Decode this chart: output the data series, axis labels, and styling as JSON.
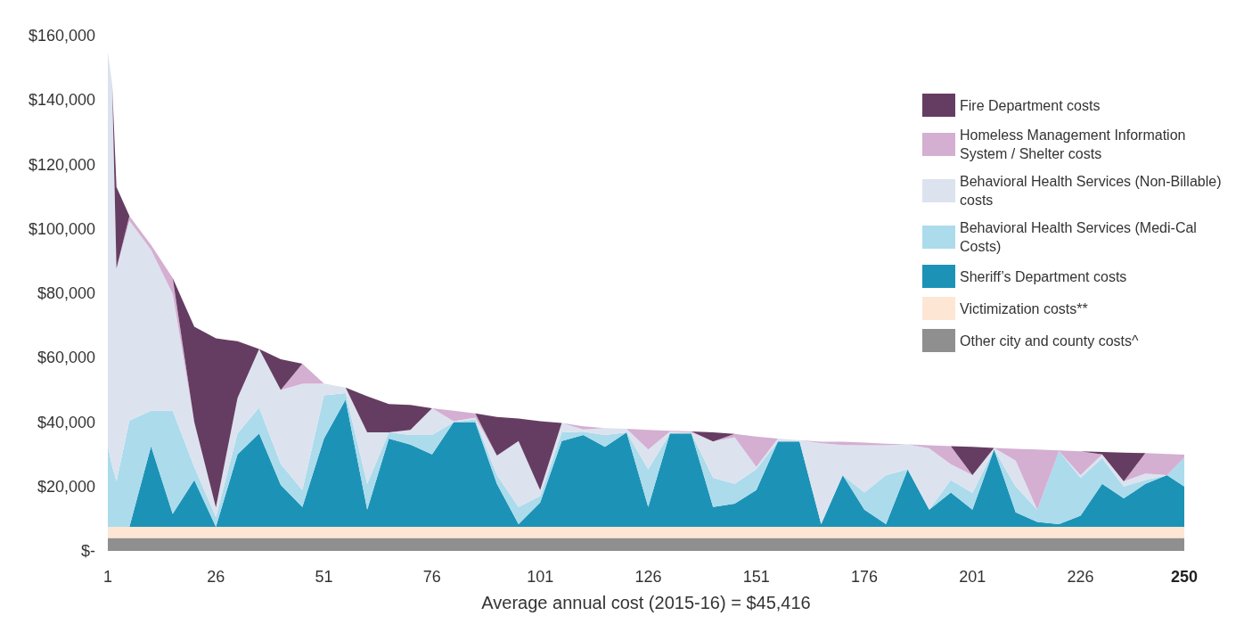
{
  "chart_data": {
    "type": "area",
    "stacked": true,
    "xlabel": "Average annual cost (2015-16) = $45,416",
    "x": [
      1,
      2,
      3,
      6,
      11,
      16,
      21,
      26,
      31,
      36,
      41,
      46,
      51,
      56,
      61,
      66,
      71,
      76,
      81,
      86,
      91,
      96,
      101,
      106,
      111,
      116,
      121,
      126,
      131,
      136,
      141,
      146,
      151,
      156,
      161,
      166,
      171,
      176,
      181,
      186,
      191,
      196,
      201,
      206,
      211,
      216,
      221,
      226,
      231,
      236,
      241,
      246,
      250
    ],
    "series": [
      {
        "name": "Other city and county costs^",
        "color": "#8f8f8f",
        "values": [
          4000,
          4000,
          4000,
          4000,
          4000,
          4000,
          4000,
          4000,
          4000,
          4000,
          4000,
          4000,
          4000,
          4000,
          4000,
          4000,
          4000,
          4000,
          4000,
          4000,
          4000,
          4000,
          4000,
          4000,
          4000,
          4000,
          4000,
          4000,
          4000,
          4000,
          4000,
          4000,
          4000,
          4000,
          4000,
          4000,
          4000,
          4000,
          4000,
          4000,
          4000,
          4000,
          4000,
          4000,
          4000,
          4000,
          4000,
          4000,
          4000,
          4000,
          4000,
          4000,
          4000
        ]
      },
      {
        "name": "Victimization costs**",
        "color": "#fde6d4",
        "values": [
          3500,
          3500,
          3500,
          3500,
          3500,
          3500,
          3500,
          3500,
          3500,
          3500,
          3500,
          3500,
          3500,
          3500,
          3500,
          3500,
          3500,
          3500,
          3500,
          3500,
          3500,
          3500,
          3500,
          3500,
          3500,
          3500,
          3500,
          3500,
          3500,
          3500,
          3500,
          3500,
          3500,
          3500,
          3500,
          3500,
          3500,
          3500,
          3500,
          3500,
          3500,
          3500,
          3500,
          3500,
          3500,
          3500,
          3500,
          3500,
          3500,
          3500,
          3500,
          3500,
          3500
        ]
      },
      {
        "name": "Sheriff’s Department costs",
        "color": "#1c93b6",
        "values": [
          0,
          0,
          0,
          0,
          25000,
          4000,
          14500,
          0,
          22500,
          29000,
          13000,
          6100,
          27400,
          39500,
          5300,
          27400,
          25500,
          22500,
          32500,
          32500,
          13300,
          800,
          7500,
          26600,
          28500,
          24800,
          29300,
          6100,
          29000,
          29000,
          6100,
          7200,
          11400,
          26500,
          26500,
          800,
          16000,
          5300,
          800,
          17800,
          5300,
          10600,
          5300,
          24000,
          4500,
          1500,
          800,
          3400,
          13300,
          8800,
          13300,
          16000,
          12500
        ]
      },
      {
        "name": "Behavioral Health Services (Medi-Cal Costs)",
        "color": "#acdbec",
        "values": [
          25000,
          18900,
          14100,
          33000,
          11000,
          32000,
          4000,
          3000,
          6500,
          8000,
          6500,
          5300,
          13400,
          2000,
          8000,
          1900,
          3000,
          6000,
          0,
          800,
          2700,
          5300,
          2000,
          2700,
          1000,
          3700,
          0,
          11700,
          0,
          0,
          9100,
          6100,
          6400,
          0,
          0,
          0,
          0,
          5300,
          15200,
          0,
          0,
          3900,
          5200,
          0,
          8000,
          3800,
          22700,
          11800,
          8000,
          3700,
          1200,
          0,
          9000
        ]
      },
      {
        "name": "Behavioral Health Services (Non-Billable) costs",
        "color": "#dce3ef",
        "values": [
          122500,
          118600,
          66100,
          62000,
          50000,
          36300,
          14000,
          3000,
          11000,
          18200,
          23000,
          33000,
          3700,
          1700,
          16000,
          0,
          1600,
          8300,
          300,
          600,
          6100,
          20500,
          1900,
          2900,
          700,
          2100,
          1100,
          6200,
          500,
          300,
          11300,
          14500,
          800,
          900,
          400,
          25100,
          9400,
          14700,
          9300,
          7800,
          19000,
          4900,
          5500,
          500,
          8000,
          0,
          0,
          800,
          1200,
          1600,
          2000,
          0,
          0
        ]
      },
      {
        "name": "Homeless Management Information System / Shelter costs",
        "color": "#d4afd2",
        "values": [
          0,
          0,
          0,
          1500,
          1500,
          5000,
          0,
          0,
          0,
          0,
          0,
          6200,
          0,
          0,
          0,
          0,
          0,
          0,
          3200,
          1300,
          0,
          0,
          0,
          0,
          1000,
          0,
          0,
          6100,
          300,
          300,
          0,
          1000,
          9400,
          0,
          0,
          500,
          1000,
          800,
          500,
          0,
          1000,
          5600,
          0,
          0,
          3700,
          18700,
          200,
          7400,
          0,
          0,
          6400,
          6600,
          900
        ]
      },
      {
        "name": "Fire Department costs",
        "color": "#663d62",
        "values": [
          0,
          0,
          25300,
          0,
          0,
          0,
          29600,
          52500,
          17600,
          0,
          9500,
          0,
          0,
          0,
          11200,
          8800,
          7700,
          0,
          0,
          0,
          12000,
          7000,
          21400,
          0,
          0,
          0,
          0,
          0,
          0,
          0,
          2800,
          0,
          0,
          0,
          0,
          0,
          0,
          0,
          0,
          0,
          0,
          0,
          8800,
          0,
          0,
          0,
          0,
          0,
          700,
          8900,
          0,
          0,
          0
        ]
      }
    ],
    "xlim": [
      1,
      250
    ],
    "xticks": [
      1,
      26,
      51,
      76,
      101,
      126,
      151,
      176,
      201,
      226,
      250
    ],
    "ylim": [
      0,
      160000
    ],
    "yticks": [
      {
        "value": 0,
        "label": "$-"
      },
      {
        "value": 20000,
        "label": "$20,000"
      },
      {
        "value": 40000,
        "label": "$40,000"
      },
      {
        "value": 60000,
        "label": "$60,000"
      },
      {
        "value": 80000,
        "label": "$80,000"
      },
      {
        "value": 100000,
        "label": "$100,000"
      },
      {
        "value": 120000,
        "label": "$120,000"
      },
      {
        "value": 140000,
        "label": "$140,000"
      },
      {
        "value": 160000,
        "label": "$160,000"
      }
    ],
    "grid": false,
    "legend": "top right"
  }
}
